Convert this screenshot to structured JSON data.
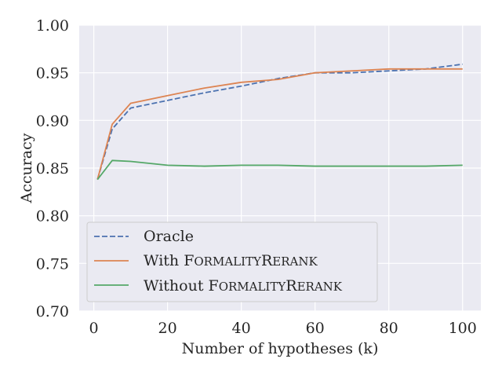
{
  "chart_data": {
    "type": "line",
    "title": "",
    "xlabel": "Number of hypotheses (k)",
    "ylabel": "Accuracy",
    "xlim": [
      -3.95,
      104.95
    ],
    "ylim": [
      0.7,
      1.0
    ],
    "xticks": [
      0,
      20,
      40,
      60,
      80,
      100
    ],
    "xtick_labels": [
      "0",
      "20",
      "40",
      "60",
      "80",
      "100"
    ],
    "yticks": [
      0.7,
      0.75,
      0.8,
      0.85,
      0.9,
      0.95,
      1.0
    ],
    "ytick_labels": [
      "0.70",
      "0.75",
      "0.80",
      "0.85",
      "0.90",
      "0.95",
      "1.00"
    ],
    "grid": true,
    "legend_position": "lower-left",
    "x": [
      1,
      5,
      10,
      20,
      30,
      40,
      50,
      60,
      70,
      80,
      90,
      100
    ],
    "series": [
      {
        "name": "Oracle",
        "style": "dashed",
        "color": "#4c72b0",
        "values": [
          0.838,
          0.891,
          0.913,
          0.921,
          0.929,
          0.936,
          0.944,
          0.95,
          0.95,
          0.952,
          0.954,
          0.959
        ]
      },
      {
        "name": "With FormalityRerank",
        "label_prefix": "With ",
        "label_sc1": "F",
        "label_sc1_rest": "ORMALITY",
        "label_sc2": "R",
        "label_sc2_rest": "ERANK",
        "style": "solid",
        "color": "#dd8452",
        "values": [
          0.838,
          0.896,
          0.918,
          0.926,
          0.934,
          0.94,
          0.943,
          0.95,
          0.952,
          0.954,
          0.954,
          0.954
        ]
      },
      {
        "name": "Without FormalityRerank",
        "label_prefix": "Without ",
        "label_sc1": "F",
        "label_sc1_rest": "ORMALITY",
        "label_sc2": "R",
        "label_sc2_rest": "ERANK",
        "style": "solid",
        "color": "#55a868",
        "values": [
          0.838,
          0.858,
          0.857,
          0.853,
          0.852,
          0.853,
          0.853,
          0.852,
          0.852,
          0.852,
          0.852,
          0.853
        ]
      }
    ]
  }
}
